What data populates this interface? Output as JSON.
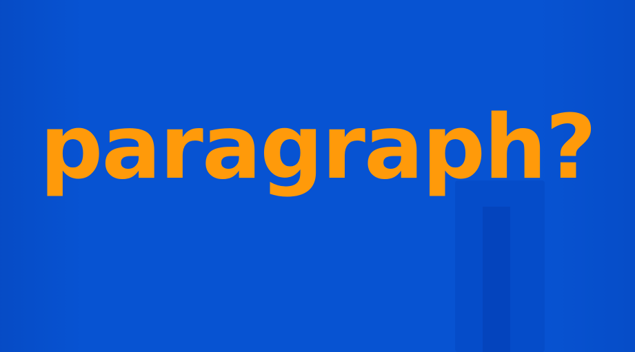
{
  "slide": {
    "headline": "paragraph?",
    "background_color": "#0753d2",
    "text_color": "#ff9a0a"
  }
}
